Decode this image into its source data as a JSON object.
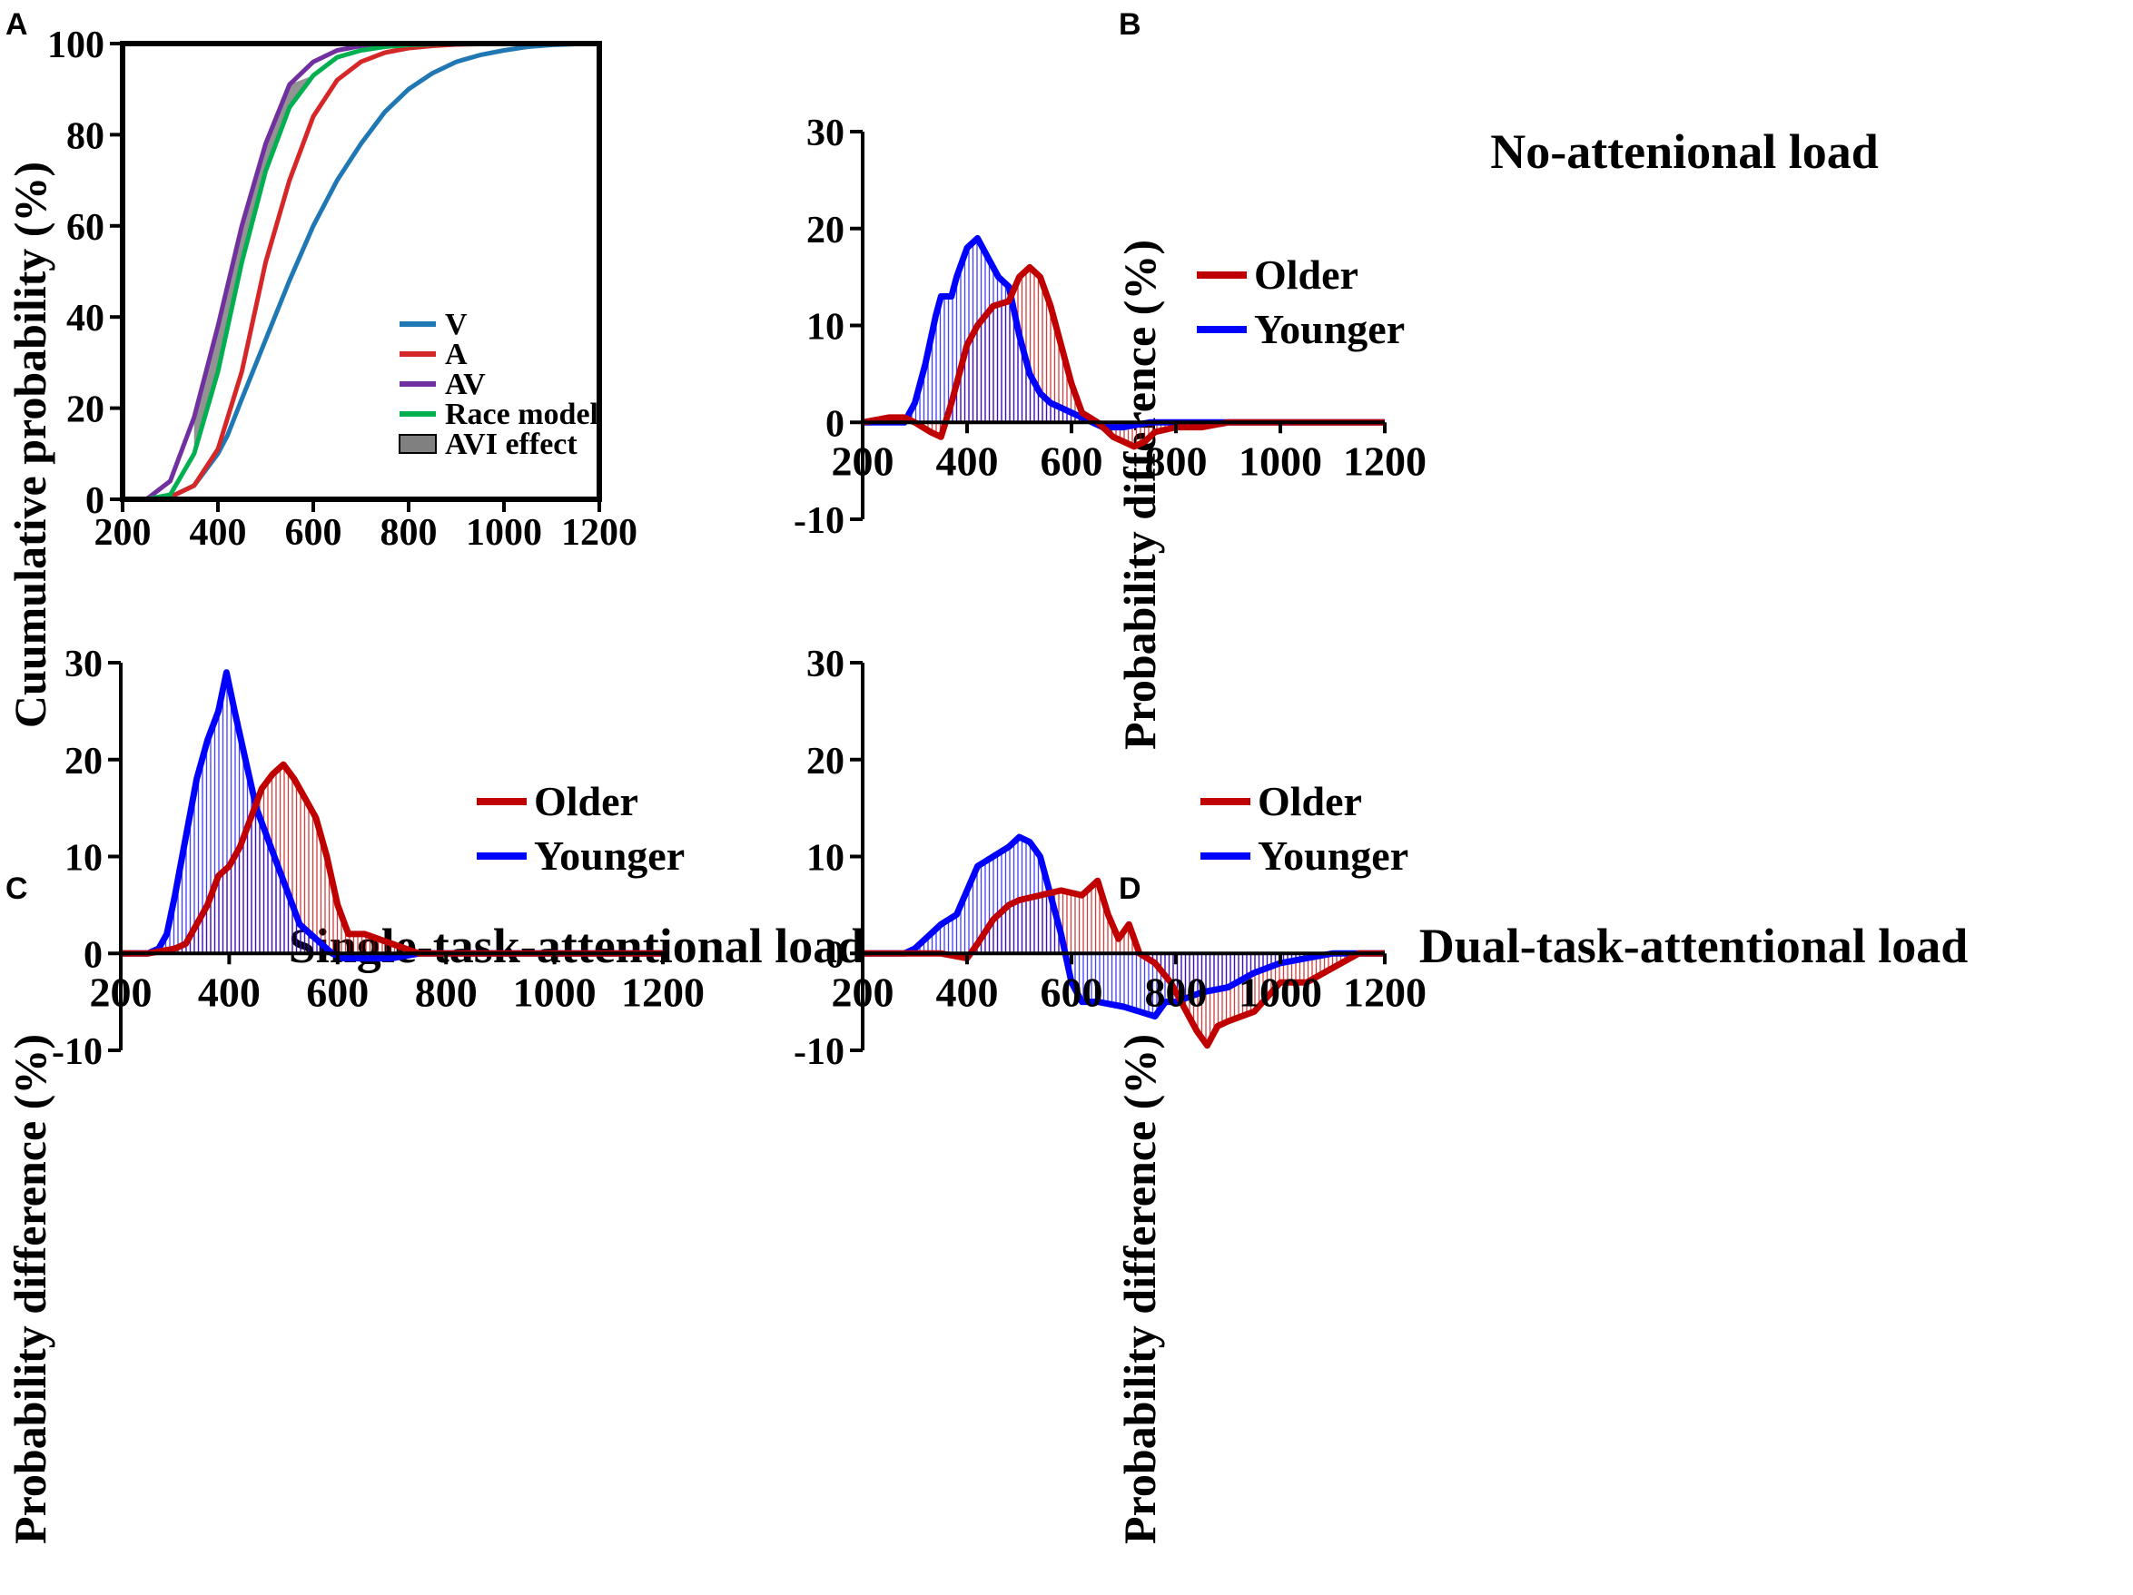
{
  "chart_data": [
    {
      "panel": "A",
      "type": "line",
      "title": "",
      "xlabel": "",
      "ylabel": "Cuumulative probability (%)",
      "xlim": [
        200,
        1200
      ],
      "ylim": [
        0,
        100
      ],
      "xticks": [
        200,
        400,
        600,
        800,
        1000,
        1200
      ],
      "yticks": [
        0,
        20,
        40,
        60,
        80,
        100
      ],
      "legend_position": "bottom-right",
      "series": [
        {
          "name": "V",
          "color": "#1f77b4",
          "x": [
            200,
            250,
            300,
            350,
            400,
            420,
            450,
            500,
            550,
            600,
            650,
            700,
            750,
            800,
            850,
            900,
            950,
            1000,
            1050,
            1100,
            1150,
            1200
          ],
          "y": [
            0,
            0,
            0.5,
            3,
            10,
            14,
            22,
            35,
            48,
            60,
            70,
            78,
            85,
            90,
            93.5,
            96,
            97.5,
            98.5,
            99.3,
            99.7,
            99.9,
            100
          ]
        },
        {
          "name": "A",
          "color": "#d62728",
          "x": [
            200,
            250,
            300,
            350,
            400,
            450,
            500,
            550,
            600,
            650,
            700,
            750,
            800,
            850,
            900,
            950,
            1000,
            1100,
            1200
          ],
          "y": [
            0,
            0,
            0.5,
            3,
            11,
            28,
            52,
            70,
            84,
            92,
            96,
            98,
            99,
            99.5,
            99.8,
            99.9,
            100,
            100,
            100
          ]
        },
        {
          "name": "AV",
          "color": "#7030a0",
          "x": [
            200,
            250,
            300,
            350,
            400,
            450,
            500,
            550,
            600,
            650,
            700,
            750,
            800,
            900,
            1000,
            1200
          ],
          "y": [
            0,
            0,
            4,
            18,
            38,
            60,
            78,
            91,
            96,
            98.5,
            99.5,
            99.8,
            100,
            100,
            100,
            100
          ]
        },
        {
          "name": "Race model",
          "color": "#00b050",
          "x": [
            200,
            250,
            300,
            350,
            400,
            450,
            500,
            550,
            600,
            650,
            700,
            750,
            800,
            900,
            1000,
            1200
          ],
          "y": [
            0,
            0,
            1,
            10,
            28,
            52,
            72,
            86,
            93,
            97,
            98.5,
            99.3,
            99.7,
            100,
            100,
            100
          ]
        },
        {
          "name": "AVI effect",
          "color": "#808080",
          "kind": "band",
          "x": [
            350,
            400,
            450,
            500,
            550,
            600,
            620
          ],
          "y_low": [
            10,
            28,
            52,
            72,
            86,
            93,
            94
          ],
          "y_high": [
            18,
            38,
            60,
            78,
            91,
            93,
            94
          ]
        }
      ]
    },
    {
      "panel": "B",
      "type": "line",
      "title": "No-attenional load",
      "xlabel": "",
      "ylabel": "Probability difference (%)",
      "xlim": [
        200,
        1200
      ],
      "ylim": [
        -10,
        30
      ],
      "xticks": [
        200,
        400,
        600,
        800,
        1000,
        1200
      ],
      "yticks": [
        -10,
        0,
        10,
        20,
        30
      ],
      "legend_position": "right",
      "series": [
        {
          "name": "Older",
          "color": "#c00000",
          "x": [
            200,
            250,
            280,
            300,
            330,
            350,
            370,
            400,
            420,
            450,
            480,
            500,
            520,
            540,
            560,
            580,
            600,
            620,
            650,
            680,
            700,
            720,
            740,
            760,
            800,
            850,
            900,
            950,
            1000,
            1100,
            1200
          ],
          "y": [
            0,
            0.5,
            0.5,
            0,
            -1,
            -1.5,
            2,
            8,
            10,
            12,
            12.5,
            15,
            16,
            15,
            12,
            8,
            4,
            1,
            0,
            -1.5,
            -2,
            -2.5,
            -2,
            -1,
            -0.5,
            -0.5,
            0,
            0,
            0,
            0,
            0
          ]
        },
        {
          "name": "Younger",
          "color": "#0000ff",
          "x": [
            200,
            250,
            280,
            300,
            320,
            340,
            350,
            370,
            380,
            400,
            420,
            440,
            460,
            480,
            500,
            520,
            540,
            560,
            580,
            600,
            620,
            640,
            660,
            700,
            750,
            800,
            900,
            1000,
            1100,
            1200
          ],
          "y": [
            0,
            0,
            0,
            2,
            6,
            11,
            13,
            13,
            15,
            18,
            19,
            17,
            15,
            14,
            9,
            5,
            3,
            2,
            1.5,
            1,
            0.5,
            0,
            -0.5,
            -0.5,
            0,
            0,
            0,
            0,
            0,
            0
          ]
        }
      ]
    },
    {
      "panel": "C",
      "type": "line",
      "title": "Single-task-attentional load",
      "xlabel": "",
      "ylabel": "Probability difference (%)",
      "xlim": [
        200,
        1200
      ],
      "ylim": [
        -10,
        30
      ],
      "xticks": [
        200,
        400,
        600,
        800,
        1000,
        1200
      ],
      "yticks": [
        -10,
        0,
        10,
        20,
        30
      ],
      "legend_position": "right",
      "series": [
        {
          "name": "Older",
          "color": "#c00000",
          "x": [
            200,
            250,
            300,
            320,
            340,
            360,
            380,
            400,
            420,
            440,
            460,
            480,
            500,
            520,
            540,
            560,
            580,
            600,
            620,
            650,
            700,
            750,
            800,
            900,
            1000,
            1100,
            1200
          ],
          "y": [
            0,
            0,
            0.5,
            1,
            3,
            5,
            8,
            9,
            11,
            14,
            17,
            18.5,
            19.5,
            18,
            16,
            14,
            10,
            5,
            2,
            2,
            1,
            0,
            0,
            0,
            0,
            0,
            0
          ]
        },
        {
          "name": "Younger",
          "color": "#0000ff",
          "x": [
            200,
            250,
            270,
            285,
            300,
            320,
            340,
            360,
            380,
            395,
            410,
            430,
            450,
            470,
            490,
            510,
            530,
            550,
            570,
            590,
            610,
            650,
            700,
            750,
            800,
            900,
            1000,
            1100,
            1200
          ],
          "y": [
            0,
            0,
            0.5,
            2,
            6,
            12,
            18,
            22,
            25,
            29,
            25,
            20,
            15,
            12,
            9,
            6,
            3,
            2,
            1,
            0,
            -0.5,
            -0.5,
            -0.5,
            0,
            0,
            0,
            0,
            0,
            0
          ]
        }
      ]
    },
    {
      "panel": "D",
      "type": "line",
      "title": "Dual-task-attentional load",
      "xlabel": "",
      "ylabel": "Probability difference (%)",
      "xlim": [
        200,
        1200
      ],
      "ylim": [
        -10,
        30
      ],
      "xticks": [
        200,
        400,
        600,
        800,
        1000,
        1200
      ],
      "yticks": [
        -10,
        0,
        10,
        20,
        30
      ],
      "legend_position": "right",
      "series": [
        {
          "name": "Older",
          "color": "#c00000",
          "x": [
            200,
            300,
            350,
            400,
            420,
            450,
            480,
            500,
            540,
            580,
            620,
            650,
            670,
            690,
            710,
            730,
            760,
            790,
            820,
            840,
            860,
            880,
            900,
            950,
            1000,
            1050,
            1100,
            1150,
            1200
          ],
          "y": [
            0,
            0,
            0,
            -0.5,
            1,
            3.5,
            5,
            5.5,
            6,
            6.5,
            6,
            7.5,
            4,
            1.5,
            3,
            0,
            -1,
            -3,
            -6,
            -8,
            -9.5,
            -7.5,
            -7,
            -6,
            -3,
            -3,
            -1.5,
            0,
            0
          ]
        },
        {
          "name": "Younger",
          "color": "#0000ff",
          "x": [
            200,
            280,
            300,
            330,
            350,
            380,
            400,
            420,
            450,
            480,
            500,
            520,
            540,
            560,
            580,
            600,
            620,
            650,
            700,
            730,
            760,
            780,
            800,
            850,
            900,
            950,
            1000,
            1050,
            1100,
            1150,
            1200
          ],
          "y": [
            0,
            0,
            0.5,
            2,
            3,
            4,
            6.5,
            9,
            10,
            11,
            12,
            11.5,
            10,
            6,
            2,
            -3,
            -5,
            -5,
            -5.5,
            -6,
            -6.5,
            -5,
            -5,
            -4,
            -3.5,
            -2,
            -1,
            -0.5,
            0,
            0,
            0
          ]
        }
      ]
    }
  ]
}
